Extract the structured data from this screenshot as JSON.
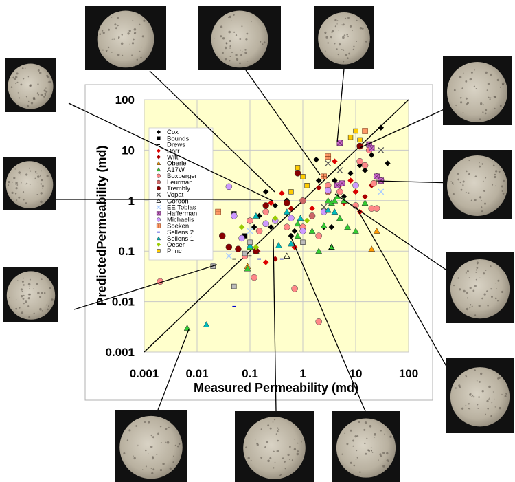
{
  "chart_data": {
    "type": "scatter",
    "title": "",
    "xlabel": "Measured Permeability (md)",
    "ylabel": "PredictedPermeability (md)",
    "x_scale": "log",
    "y_scale": "log",
    "xlim": [
      0.001,
      100
    ],
    "ylim": [
      0.001,
      100
    ],
    "x_ticks": [
      "0.001",
      "0.01",
      "0.1",
      "1",
      "10",
      "100"
    ],
    "y_ticks": [
      "0.001",
      "0.01",
      "0.1",
      "1",
      "10",
      "100"
    ],
    "grid": true,
    "plot_background": "#ffffcc",
    "legend_position": "upper-left",
    "reference_line": "1:1",
    "series": [
      {
        "name": "Cox",
        "marker": "diamond",
        "color": "#000000",
        "points": [
          [
            0.15,
            0.5
          ],
          [
            0.2,
            1.5
          ],
          [
            0.3,
            0.8
          ],
          [
            0.5,
            1.0
          ],
          [
            0.6,
            0.2
          ],
          [
            0.7,
            0.25
          ],
          [
            1.5,
            0.5
          ],
          [
            1.8,
            6.5
          ],
          [
            2.0,
            2.5
          ],
          [
            2.5,
            0.3
          ],
          [
            3.0,
            1.5
          ],
          [
            3.5,
            0.3
          ],
          [
            4.0,
            2.5
          ],
          [
            6.0,
            1.2
          ],
          [
            8.0,
            3.5
          ],
          [
            10.0,
            1.5
          ],
          [
            12.0,
            5.0
          ],
          [
            15.0,
            4.0
          ],
          [
            20.0,
            8.0
          ],
          [
            30.0,
            28.0
          ],
          [
            40.0,
            5.5
          ],
          [
            0.12,
            0.3
          ],
          [
            0.25,
            0.3
          ]
        ]
      },
      {
        "name": "Bounds",
        "marker": "square",
        "color": "#000000",
        "points": [
          [
            0.08,
            0.2
          ],
          [
            0.05,
            0.55
          ],
          [
            0.1,
            0.4
          ]
        ]
      },
      {
        "name": "Drews",
        "marker": "dash",
        "color": "#000000",
        "points": [
          [
            0.05,
            0.07
          ],
          [
            0.1,
            0.08
          ]
        ]
      },
      {
        "name": "Dorr",
        "marker": "diamond",
        "color": "#dd0000",
        "points": [
          [
            0.14,
            0.1
          ],
          [
            0.2,
            0.06
          ],
          [
            0.25,
            0.9
          ],
          [
            0.4,
            1.4
          ],
          [
            0.7,
            0.12
          ],
          [
            1.5,
            0.7
          ],
          [
            4.0,
            6.0
          ],
          [
            5.0,
            2.0
          ],
          [
            8.0,
            2.5
          ],
          [
            10.0,
            1.5
          ],
          [
            12.0,
            0.6
          ],
          [
            6.0,
            0.9
          ]
        ]
      },
      {
        "name": "Witt",
        "marker": "diamond",
        "color": "#aa0000",
        "points": [
          [
            0.3,
            0.07
          ],
          [
            0.6,
            0.7
          ],
          [
            2.0,
            1.8
          ],
          [
            3.0,
            1.6
          ],
          [
            15.0,
            1.2
          ],
          [
            20.0,
            2.0
          ]
        ]
      },
      {
        "name": "Oberle",
        "marker": "triangle",
        "color": "#ff9900",
        "points": [
          [
            25.0,
            0.25
          ],
          [
            20.0,
            0.11
          ],
          [
            0.09,
            0.05
          ]
        ]
      },
      {
        "name": "A17W",
        "marker": "triangle",
        "color": "#33cc33",
        "points": [
          [
            0.0065,
            0.003
          ],
          [
            0.09,
            0.045
          ],
          [
            0.1,
            0.12
          ],
          [
            0.13,
            0.1
          ],
          [
            0.8,
            0.2
          ],
          [
            1.5,
            0.25
          ],
          [
            2.0,
            0.1
          ],
          [
            2.5,
            0.32
          ],
          [
            3.0,
            1.0
          ],
          [
            3.5,
            0.9
          ],
          [
            4.0,
            1.0
          ],
          [
            4.5,
            1.2
          ],
          [
            5.0,
            0.45
          ],
          [
            6.0,
            1.0
          ],
          [
            7.0,
            0.3
          ],
          [
            10.0,
            0.25
          ],
          [
            15.0,
            0.9
          ],
          [
            3.5,
            0.12
          ],
          [
            0.8,
            0.35
          ]
        ]
      },
      {
        "name": "Boxberger",
        "marker": "circle",
        "color": "#ff8888",
        "points": [
          [
            0.002,
            0.025
          ],
          [
            0.08,
            0.08
          ],
          [
            0.1,
            0.4
          ],
          [
            0.15,
            0.25
          ],
          [
            0.2,
            0.6
          ],
          [
            0.5,
            0.3
          ],
          [
            1.0,
            0.3
          ],
          [
            2.0,
            0.2
          ],
          [
            2.0,
            0.004
          ],
          [
            0.7,
            0.018
          ],
          [
            3.0,
            2.0
          ],
          [
            5.0,
            1.5
          ],
          [
            10.0,
            0.8
          ],
          [
            12.0,
            6.0
          ],
          [
            15.0,
            5.0
          ],
          [
            18.0,
            10.0
          ],
          [
            20.0,
            0.7
          ],
          [
            22.0,
            2.2
          ],
          [
            25.0,
            3.0
          ],
          [
            25.0,
            0.7
          ],
          [
            30.0,
            2.5
          ],
          [
            0.12,
            0.03
          ]
        ]
      },
      {
        "name": "Leurman",
        "marker": "circle",
        "color": "#cc6666",
        "points": [
          [
            1.0,
            1.0
          ],
          [
            3.0,
            1.5
          ],
          [
            1.5,
            0.5
          ]
        ]
      },
      {
        "name": "Trembly",
        "marker": "circle",
        "color": "#880000",
        "points": [
          [
            0.04,
            0.12
          ],
          [
            0.06,
            0.11
          ],
          [
            0.13,
            0.1
          ],
          [
            0.2,
            0.8
          ],
          [
            0.5,
            0.9
          ],
          [
            0.8,
            3.5
          ],
          [
            12.0,
            12.0
          ],
          [
            0.03,
            0.2
          ]
        ]
      },
      {
        "name": "Vopat",
        "marker": "cross",
        "color": "#555555",
        "points": [
          [
            3.0,
            5.5
          ],
          [
            30.0,
            10.0
          ],
          [
            5.0,
            4.0
          ],
          [
            2.5,
            0.75
          ]
        ]
      },
      {
        "name": "Gordon",
        "marker": "triangle-open",
        "color": "#000000",
        "points": [
          [
            3.5,
            0.12
          ],
          [
            0.5,
            0.08
          ]
        ]
      },
      {
        "name": "EE Tobias",
        "marker": "cross",
        "color": "#aaccff",
        "points": [
          [
            0.04,
            0.08
          ],
          [
            0.1,
            0.25
          ],
          [
            30.0,
            1.5
          ]
        ]
      },
      {
        "name": "Hafferman",
        "marker": "square-x",
        "color": "#cc66cc",
        "points": [
          [
            5.0,
            14.0
          ],
          [
            4.5,
            2.0
          ],
          [
            18.0,
            13.0
          ],
          [
            20.0,
            11.0
          ],
          [
            25.0,
            3.0
          ],
          [
            30.0,
            2.5
          ],
          [
            5.5,
            2.2
          ]
        ]
      },
      {
        "name": "Michaelis",
        "marker": "circle",
        "color": "#cc99ff",
        "points": [
          [
            0.04,
            1.9
          ],
          [
            0.05,
            0.5
          ],
          [
            0.2,
            0.35
          ],
          [
            0.3,
            0.4
          ],
          [
            0.6,
            0.45
          ],
          [
            1.0,
            0.25
          ],
          [
            2.5,
            0.6
          ],
          [
            3.0,
            1.6
          ],
          [
            10.0,
            2.0
          ],
          [
            0.07,
            0.18
          ]
        ]
      },
      {
        "name": "Soeken",
        "marker": "square-plus",
        "color": "#ff9966",
        "points": [
          [
            0.025,
            0.6
          ],
          [
            3.0,
            7.5
          ],
          [
            15.0,
            24.0
          ],
          [
            2.5,
            3.0
          ]
        ]
      },
      {
        "name": "Sellens 2",
        "marker": "dash",
        "color": "#0000cc",
        "points": [
          [
            0.02,
            0.055
          ],
          [
            0.05,
            0.008
          ],
          [
            0.15,
            0.07
          ],
          [
            0.4,
            0.07
          ]
        ]
      },
      {
        "name": "Sellens 1",
        "marker": "triangle",
        "color": "#00bbbb",
        "points": [
          [
            0.015,
            0.0035
          ],
          [
            0.1,
            0.13
          ],
          [
            0.35,
            0.13
          ],
          [
            0.5,
            0.6
          ],
          [
            0.9,
            0.45
          ],
          [
            0.6,
            0.14
          ],
          [
            4.0,
            0.6
          ],
          [
            3.0,
            0.65
          ],
          [
            0.13,
            0.5
          ]
        ]
      },
      {
        "name": "Oeser",
        "marker": "diamond",
        "color": "#99cc00",
        "points": [
          [
            0.07,
            0.3
          ],
          [
            1.2,
            0.4
          ],
          [
            0.3,
            0.45
          ],
          [
            0.13,
            0.12
          ]
        ]
      },
      {
        "name": "Princ",
        "marker": "square",
        "color": "#ffcc00",
        "points": [
          [
            0.8,
            4.5
          ],
          [
            1.0,
            3.0
          ],
          [
            1.2,
            2.0
          ],
          [
            10.0,
            24.0
          ],
          [
            12.0,
            16.0
          ],
          [
            0.6,
            1.5
          ],
          [
            8.0,
            18.0
          ]
        ]
      },
      {
        "name": "",
        "marker": "square",
        "color": "#bbbbbb",
        "points": [
          [
            0.02,
            0.05
          ],
          [
            0.05,
            0.02
          ],
          [
            0.1,
            0.15
          ],
          [
            1.0,
            0.15
          ],
          [
            0.08,
            0.09
          ]
        ]
      }
    ]
  }
}
